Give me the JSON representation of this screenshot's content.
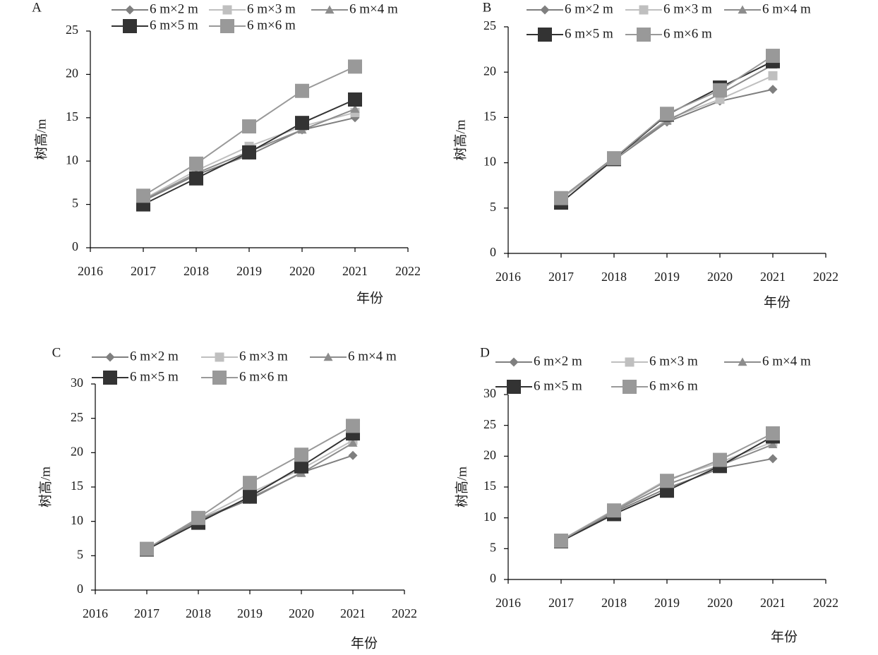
{
  "chart_data": [
    {
      "type": "line",
      "panel_label": "A",
      "xlabel": "年份",
      "ylabel": "树高/m",
      "xlim": [
        2016,
        2022
      ],
      "ylim": [
        0,
        25
      ],
      "x_ticks": [
        2016,
        2017,
        2018,
        2019,
        2020,
        2021,
        2022
      ],
      "y_ticks": [
        0,
        5,
        10,
        15,
        20,
        25
      ],
      "x": [
        2017,
        2018,
        2019,
        2020,
        2021
      ],
      "series": [
        {
          "name": "6 m×2 m",
          "marker": "diamond",
          "color": "#7f7f7f",
          "values": [
            5.4,
            8.4,
            10.7,
            13.6,
            15.0
          ]
        },
        {
          "name": "6 m×3 m",
          "marker": "square",
          "color": "#bfbfbf",
          "values": [
            5.6,
            8.9,
            11.7,
            14.0,
            15.6
          ]
        },
        {
          "name": "6 m×4 m",
          "marker": "triangle",
          "color": "#8c8c8c",
          "values": [
            5.5,
            8.6,
            11.1,
            13.6,
            16.0
          ]
        },
        {
          "name": "6 m×5 m",
          "marker": "square",
          "color": "#333333",
          "values": [
            5.0,
            8.0,
            11.0,
            14.4,
            17.1
          ]
        },
        {
          "name": "6 m×6 m",
          "marker": "square",
          "color": "#999999",
          "values": [
            6.0,
            9.7,
            14.0,
            18.1,
            20.9
          ]
        }
      ]
    },
    {
      "type": "line",
      "panel_label": "B",
      "xlabel": "年份",
      "ylabel": "树高/m",
      "xlim": [
        2016,
        2022
      ],
      "ylim": [
        0,
        25
      ],
      "x_ticks": [
        2016,
        2017,
        2018,
        2019,
        2020,
        2021,
        2022
      ],
      "y_ticks": [
        0,
        5,
        10,
        15,
        20,
        25
      ],
      "x": [
        2017,
        2018,
        2019,
        2020,
        2021
      ],
      "series": [
        {
          "name": "6 m×2 m",
          "marker": "diamond",
          "color": "#7f7f7f",
          "values": [
            6.0,
            10.3,
            14.5,
            16.8,
            18.1
          ]
        },
        {
          "name": "6 m×3 m",
          "marker": "square",
          "color": "#bfbfbf",
          "values": [
            6.0,
            10.4,
            14.8,
            17.0,
            19.6
          ]
        },
        {
          "name": "6 m×4 m",
          "marker": "triangle",
          "color": "#8c8c8c",
          "values": [
            6.1,
            10.6,
            14.6,
            17.6,
            20.8
          ]
        },
        {
          "name": "6 m×5 m",
          "marker": "square",
          "color": "#333333",
          "values": [
            5.6,
            10.4,
            15.3,
            18.3,
            21.2
          ]
        },
        {
          "name": "6 m×6 m",
          "marker": "square",
          "color": "#999999",
          "values": [
            6.1,
            10.5,
            15.4,
            18.0,
            21.8
          ]
        }
      ]
    },
    {
      "type": "line",
      "panel_label": "C",
      "xlabel": "年份",
      "ylabel": "树高/m",
      "xlim": [
        2016,
        2022
      ],
      "ylim": [
        0,
        30
      ],
      "x_ticks": [
        2016,
        2017,
        2018,
        2019,
        2020,
        2021,
        2022
      ],
      "y_ticks": [
        0,
        5,
        10,
        15,
        20,
        25,
        30
      ],
      "x": [
        2017,
        2018,
        2019,
        2020,
        2021
      ],
      "series": [
        {
          "name": "6 m×2 m",
          "marker": "diamond",
          "color": "#7f7f7f",
          "values": [
            6.0,
            10.1,
            13.2,
            17.1,
            19.6
          ]
        },
        {
          "name": "6 m×3 m",
          "marker": "square",
          "color": "#bfbfbf",
          "values": [
            6.0,
            10.3,
            14.1,
            17.6,
            21.8
          ]
        },
        {
          "name": "6 m×4 m",
          "marker": "triangle",
          "color": "#8c8c8c",
          "values": [
            6.0,
            10.2,
            13.4,
            17.0,
            21.4
          ]
        },
        {
          "name": "6 m×5 m",
          "marker": "square",
          "color": "#333333",
          "values": [
            5.9,
            9.8,
            13.6,
            18.0,
            22.8
          ]
        },
        {
          "name": "6 m×6 m",
          "marker": "square",
          "color": "#999999",
          "values": [
            6.0,
            10.5,
            15.6,
            19.7,
            23.9
          ]
        }
      ]
    },
    {
      "type": "line",
      "panel_label": "D",
      "xlabel": "年份",
      "ylabel": "树高/m",
      "xlim": [
        2016,
        2022
      ],
      "ylim": [
        0,
        30
      ],
      "x_ticks": [
        2016,
        2017,
        2018,
        2019,
        2020,
        2021,
        2022
      ],
      "y_ticks": [
        0,
        5,
        10,
        15,
        20,
        25,
        30
      ],
      "x": [
        2017,
        2018,
        2019,
        2020,
        2021
      ],
      "series": [
        {
          "name": "6 m×2 m",
          "marker": "diamond",
          "color": "#7f7f7f",
          "values": [
            6.3,
            10.9,
            14.8,
            18.0,
            19.6
          ]
        },
        {
          "name": "6 m×3 m",
          "marker": "square",
          "color": "#bfbfbf",
          "values": [
            6.4,
            11.3,
            16.2,
            19.0,
            22.3
          ]
        },
        {
          "name": "6 m×4 m",
          "marker": "triangle",
          "color": "#8c8c8c",
          "values": [
            6.3,
            11.1,
            15.4,
            18.5,
            21.9
          ]
        },
        {
          "name": "6 m×5 m",
          "marker": "square",
          "color": "#333333",
          "values": [
            6.2,
            10.6,
            14.4,
            18.4,
            23.2
          ]
        },
        {
          "name": "6 m×6 m",
          "marker": "square",
          "color": "#999999",
          "values": [
            6.3,
            11.2,
            16.0,
            19.4,
            23.7
          ]
        }
      ]
    }
  ]
}
